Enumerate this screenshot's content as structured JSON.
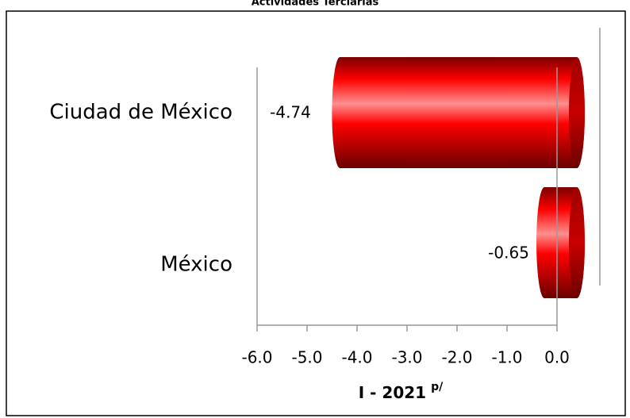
{
  "chart_data": {
    "type": "bar",
    "orientation": "horizontal",
    "title": "Actividades Terciarias",
    "categories": [
      "Ciudad de México",
      "México"
    ],
    "values": [
      -4.74,
      -0.65
    ],
    "color": "#ff0000",
    "x_label": "I - 2021",
    "x_label_sup": "p/",
    "xlim": [
      -6,
      0
    ],
    "xticks": [
      {
        "value": -6,
        "label": "-6.0"
      },
      {
        "value": -5,
        "label": "-5.0"
      },
      {
        "value": -4,
        "label": "-4.0"
      },
      {
        "value": -3,
        "label": "-3.0"
      },
      {
        "value": -2,
        "label": "-2.0"
      },
      {
        "value": -1,
        "label": "-1.0"
      },
      {
        "value": 0,
        "label": "0.0"
      }
    ]
  }
}
